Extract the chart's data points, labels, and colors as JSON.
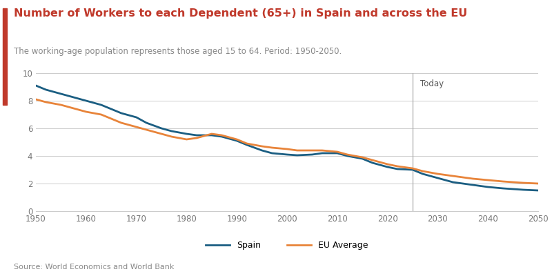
{
  "title": "Number of Workers to each Dependent (65+) in Spain and across the EU",
  "subtitle": "The working-age population represents those aged 15 to 64. Period: 1950-2050.",
  "source": "Source: World Economics and World Bank",
  "title_color": "#c0392b",
  "subtitle_color": "#888888",
  "source_color": "#888888",
  "left_bar_color": "#c0392b",
  "today_line_x": 2025,
  "today_label": "Today",
  "xlim": [
    1950,
    2050
  ],
  "ylim": [
    0,
    10
  ],
  "yticks": [
    0,
    2,
    4,
    6,
    8,
    10
  ],
  "xticks": [
    1950,
    1960,
    1970,
    1980,
    1990,
    2000,
    2010,
    2020,
    2030,
    2040,
    2050
  ],
  "spain_color": "#1b5e82",
  "eu_color": "#e8843a",
  "spain_label": "Spain",
  "eu_label": "EU Average",
  "spain_x": [
    1950,
    1952,
    1955,
    1957,
    1960,
    1963,
    1965,
    1967,
    1970,
    1972,
    1975,
    1977,
    1980,
    1982,
    1985,
    1987,
    1990,
    1992,
    1995,
    1997,
    2000,
    2002,
    2005,
    2007,
    2010,
    2012,
    2015,
    2017,
    2020,
    2022,
    2025,
    2027,
    2030,
    2033,
    2035,
    2037,
    2040,
    2043,
    2045,
    2047,
    2050
  ],
  "spain_y": [
    9.1,
    8.8,
    8.5,
    8.3,
    8.0,
    7.7,
    7.4,
    7.1,
    6.8,
    6.4,
    6.0,
    5.8,
    5.6,
    5.5,
    5.5,
    5.4,
    5.1,
    4.8,
    4.4,
    4.2,
    4.1,
    4.05,
    4.1,
    4.2,
    4.2,
    4.0,
    3.8,
    3.5,
    3.2,
    3.05,
    3.0,
    2.7,
    2.4,
    2.1,
    2.0,
    1.9,
    1.75,
    1.65,
    1.6,
    1.55,
    1.5
  ],
  "eu_x": [
    1950,
    1952,
    1955,
    1957,
    1960,
    1963,
    1965,
    1967,
    1970,
    1972,
    1975,
    1977,
    1980,
    1982,
    1985,
    1987,
    1990,
    1992,
    1995,
    1997,
    2000,
    2002,
    2005,
    2007,
    2010,
    2012,
    2015,
    2017,
    2020,
    2022,
    2025,
    2027,
    2030,
    2033,
    2035,
    2037,
    2040,
    2043,
    2045,
    2047,
    2050
  ],
  "eu_y": [
    8.1,
    7.9,
    7.7,
    7.5,
    7.2,
    7.0,
    6.7,
    6.4,
    6.1,
    5.9,
    5.6,
    5.4,
    5.2,
    5.3,
    5.6,
    5.5,
    5.2,
    4.9,
    4.7,
    4.6,
    4.5,
    4.4,
    4.4,
    4.4,
    4.3,
    4.1,
    3.9,
    3.7,
    3.4,
    3.25,
    3.1,
    2.9,
    2.7,
    2.55,
    2.45,
    2.35,
    2.25,
    2.15,
    2.1,
    2.05,
    2.0
  ],
  "background_color": "#ffffff",
  "grid_color": "#cccccc",
  "line_width": 2.0
}
